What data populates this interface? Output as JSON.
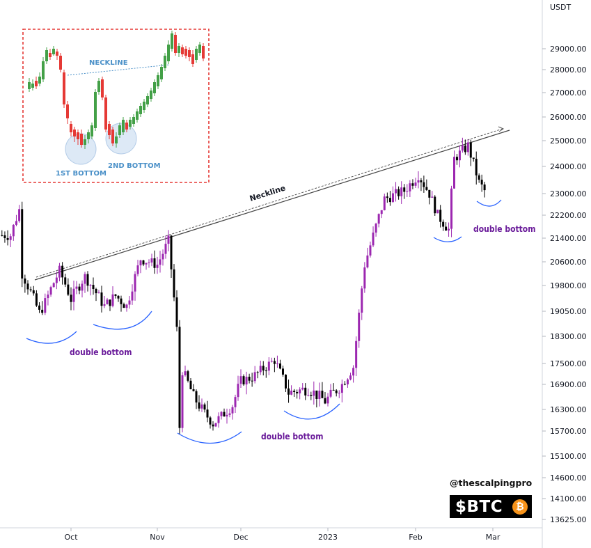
{
  "chart_data": {
    "type": "candlestick",
    "symbol": "$BTC",
    "quote_currency": "USDT",
    "y_ticks": [
      29000,
      28000,
      27000,
      26000,
      25000,
      24000,
      23000,
      22200,
      21400,
      20600,
      19800,
      19050,
      18300,
      17500,
      16900,
      16300,
      15700,
      15100,
      14600,
      14100,
      13625
    ],
    "y_tick_labels": [
      "29000.00",
      "28000.00",
      "27000.00",
      "26000.00",
      "25000.00",
      "24000.00",
      "23000.00",
      "22200.00",
      "21400.00",
      "20600.00",
      "19800.00",
      "19050.00",
      "18300.00",
      "17500.00",
      "16900.00",
      "16300.00",
      "15700.00",
      "15100.00",
      "14600.00",
      "14100.00",
      "13625.00"
    ],
    "x_ticks": [
      "Oct",
      "Nov",
      "Dec",
      "2023",
      "Feb",
      "Mar"
    ],
    "price_path": [
      {
        "date": "2022-09-10",
        "price": 21500
      },
      {
        "date": "2022-09-13",
        "price": 22400
      },
      {
        "date": "2022-09-14",
        "price": 20200
      },
      {
        "date": "2022-09-20",
        "price": 19000
      },
      {
        "date": "2022-09-22",
        "price": 19300
      },
      {
        "date": "2022-09-27",
        "price": 20300
      },
      {
        "date": "2022-10-01",
        "price": 19400
      },
      {
        "date": "2022-10-06",
        "price": 20100
      },
      {
        "date": "2022-10-13",
        "price": 19200
      },
      {
        "date": "2022-10-17",
        "price": 19500
      },
      {
        "date": "2022-10-21",
        "price": 19200
      },
      {
        "date": "2022-10-26",
        "price": 20700
      },
      {
        "date": "2022-11-01",
        "price": 20500
      },
      {
        "date": "2022-11-05",
        "price": 21300
      },
      {
        "date": "2022-11-08",
        "price": 18500
      },
      {
        "date": "2022-11-10",
        "price": 17300
      },
      {
        "date": "2022-11-09",
        "price": 15800
      },
      {
        "date": "2022-11-14",
        "price": 16600
      },
      {
        "date": "2022-11-21",
        "price": 15900
      },
      {
        "date": "2022-11-28",
        "price": 16400
      },
      {
        "date": "2022-12-01",
        "price": 17000
      },
      {
        "date": "2022-12-05",
        "price": 17100
      },
      {
        "date": "2022-12-13",
        "price": 17600
      },
      {
        "date": "2022-12-18",
        "price": 16700
      },
      {
        "date": "2022-12-25",
        "price": 16800
      },
      {
        "date": "2022-12-31",
        "price": 16500
      },
      {
        "date": "2023-01-06",
        "price": 16900
      },
      {
        "date": "2023-01-10",
        "price": 17400
      },
      {
        "date": "2023-01-14",
        "price": 20500
      },
      {
        "date": "2023-01-21",
        "price": 22800
      },
      {
        "date": "2023-01-28",
        "price": 23100
      },
      {
        "date": "2023-02-02",
        "price": 23700
      },
      {
        "date": "2023-02-06",
        "price": 23000
      },
      {
        "date": "2023-02-09",
        "price": 22200
      },
      {
        "date": "2023-02-13",
        "price": 21700
      },
      {
        "date": "2023-02-15",
        "price": 24300
      },
      {
        "date": "2023-02-20",
        "price": 24800
      },
      {
        "date": "2023-02-24",
        "price": 23400
      },
      {
        "date": "2023-02-26",
        "price": 23100
      }
    ],
    "neckline": {
      "label": "Neckline",
      "from": {
        "date": "2022-09-14",
        "price": 19900
      },
      "to": {
        "date": "2023-03-03",
        "price": 25400
      }
    },
    "annotations": [
      "double bottom",
      "double bottom",
      "double bottom",
      "double bottom"
    ],
    "inset": {
      "neckline_label": "NECKLINE",
      "first_bottom_label": "1ST BOTTOM",
      "second_bottom_label": "2ND BOTTOM"
    }
  },
  "colors": {
    "bull": "#9c27b0",
    "bear": "#000000",
    "inset_bull": "#43a047",
    "inset_bear": "#e53935",
    "curve": "#2962ff",
    "annotation": "#6a1b9a",
    "inset_border": "#e53935",
    "inset_text": "#4a90c8",
    "brand_accent": "#f7931a"
  },
  "branding": {
    "handle": "@thescalpingpro",
    "ticker": "$BTC",
    "coin_symbol": "₿"
  }
}
